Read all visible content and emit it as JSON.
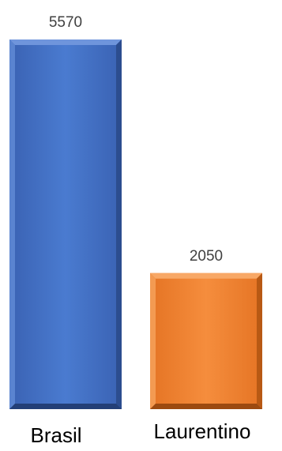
{
  "chart_data": {
    "type": "bar",
    "categories": [
      "Brasil",
      "Laurentino"
    ],
    "values": [
      5570,
      2050
    ],
    "value_labels": [
      "5570",
      "2050"
    ],
    "colors": [
      "#4472C4",
      "#ED7D31"
    ],
    "title": "",
    "xlabel": "",
    "ylabel": "",
    "ylim": [
      0,
      5570
    ],
    "grid": false,
    "legend": "none"
  }
}
